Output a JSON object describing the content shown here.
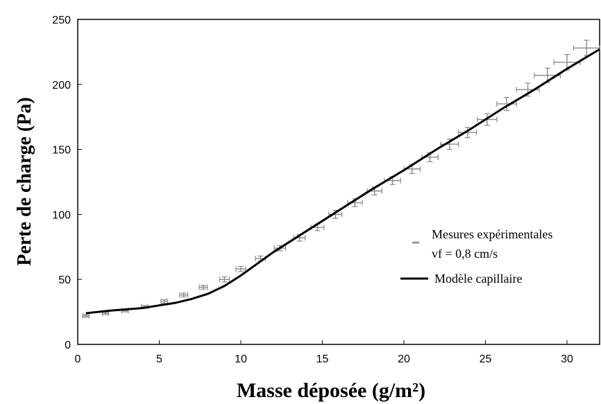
{
  "chart_data": {
    "type": "scatter",
    "xlabel": "Masse déposée (g/m²)",
    "ylabel": "Perte de charge (Pa)",
    "xlim": [
      0,
      32
    ],
    "ylim": [
      0,
      250
    ],
    "x_ticks": [
      0,
      5,
      10,
      15,
      20,
      25,
      30
    ],
    "y_ticks": [
      0,
      50,
      100,
      150,
      200,
      250
    ],
    "grid": false,
    "legend_position": "right",
    "legend": {
      "measured_label_line1": "Mesures expérimentales",
      "measured_label_line2": "vf = 0,8 cm/s",
      "model_label": "Modèle capillaire"
    },
    "series": [
      {
        "name": "Mesures expérimentales",
        "kind": "points-with-error-bars",
        "color": "#888888",
        "points": [
          {
            "x": 0.5,
            "y": 22,
            "xerr": 0.2,
            "yerr": 1
          },
          {
            "x": 1.7,
            "y": 24,
            "xerr": 0.2,
            "yerr": 1
          },
          {
            "x": 2.9,
            "y": 26,
            "xerr": 0.2,
            "yerr": 1
          },
          {
            "x": 4.1,
            "y": 29,
            "xerr": 0.2,
            "yerr": 1
          },
          {
            "x": 5.3,
            "y": 33,
            "xerr": 0.2,
            "yerr": 1.5
          },
          {
            "x": 6.5,
            "y": 38,
            "xerr": 0.25,
            "yerr": 1.5
          },
          {
            "x": 7.7,
            "y": 44,
            "xerr": 0.25,
            "yerr": 1.5
          },
          {
            "x": 9.0,
            "y": 50,
            "xerr": 0.3,
            "yerr": 2
          },
          {
            "x": 10.0,
            "y": 58,
            "xerr": 0.3,
            "yerr": 2
          },
          {
            "x": 11.2,
            "y": 66,
            "xerr": 0.3,
            "yerr": 2
          },
          {
            "x": 12.4,
            "y": 74,
            "xerr": 0.35,
            "yerr": 2
          },
          {
            "x": 13.6,
            "y": 82,
            "xerr": 0.35,
            "yerr": 2.5
          },
          {
            "x": 14.7,
            "y": 90,
            "xerr": 0.4,
            "yerr": 2.5
          },
          {
            "x": 15.8,
            "y": 100,
            "xerr": 0.4,
            "yerr": 3
          },
          {
            "x": 17.0,
            "y": 109,
            "xerr": 0.45,
            "yerr": 3
          },
          {
            "x": 18.2,
            "y": 118,
            "xerr": 0.45,
            "yerr": 3
          },
          {
            "x": 19.3,
            "y": 126,
            "xerr": 0.5,
            "yerr": 3
          },
          {
            "x": 20.5,
            "y": 135,
            "xerr": 0.5,
            "yerr": 3.5
          },
          {
            "x": 21.6,
            "y": 144,
            "xerr": 0.5,
            "yerr": 3.5
          },
          {
            "x": 22.8,
            "y": 154,
            "xerr": 0.55,
            "yerr": 4
          },
          {
            "x": 23.9,
            "y": 163,
            "xerr": 0.55,
            "yerr": 4
          },
          {
            "x": 25.1,
            "y": 173,
            "xerr": 0.6,
            "yerr": 4.5
          },
          {
            "x": 26.3,
            "y": 185,
            "xerr": 0.6,
            "yerr": 5
          },
          {
            "x": 27.6,
            "y": 196,
            "xerr": 0.7,
            "yerr": 5
          },
          {
            "x": 28.8,
            "y": 207,
            "xerr": 0.8,
            "yerr": 5.5
          },
          {
            "x": 30.0,
            "y": 217,
            "xerr": 0.8,
            "yerr": 6
          },
          {
            "x": 31.2,
            "y": 228,
            "xerr": 0.8,
            "yerr": 6
          }
        ]
      },
      {
        "name": "Modèle capillaire",
        "kind": "line",
        "color": "#000000",
        "x": [
          0.5,
          2,
          4,
          5,
          6,
          7,
          8,
          9,
          10,
          11,
          12,
          14,
          16,
          18,
          20,
          22,
          24,
          26,
          28,
          30,
          32
        ],
        "y": [
          24,
          26,
          28,
          30,
          32,
          35,
          39,
          45,
          53,
          62,
          71,
          87,
          103,
          119,
          134,
          150,
          165,
          181,
          196,
          212,
          227
        ]
      }
    ]
  }
}
